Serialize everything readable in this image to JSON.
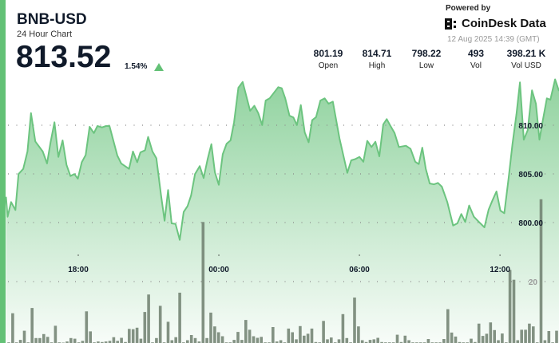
{
  "header": {
    "title": "BNB-USD",
    "subtitle": "24 Hour Chart",
    "price": "813.52",
    "change": "1.54%",
    "change_direction": "up",
    "powered_by": "Powered by",
    "brand": "CoinDesk Data",
    "timestamp": "12 Aug 2025 14:39 (GMT)"
  },
  "stats": [
    {
      "value": "801.19",
      "label": "Open"
    },
    {
      "value": "814.71",
      "label": "High"
    },
    {
      "value": "798.22",
      "label": "Low"
    },
    {
      "value": "493",
      "label": "Vol"
    },
    {
      "value": "398.21 K",
      "label": "Vol USD"
    }
  ],
  "colors": {
    "accent": "#63c176",
    "line": "#6cc47f",
    "volume": "#6f7f6f"
  },
  "chart_data": {
    "type": "area",
    "x_ticks": [
      "18:00",
      "00:00",
      "06:00",
      "12:00"
    ],
    "y_ticks": [
      "800.00",
      "805.00",
      "810.00"
    ],
    "y_range": [
      797.0,
      815.1
    ],
    "volume_tick": "20",
    "grid": "dotted horizontal",
    "price": [
      [
        "14:55",
        802.65
      ],
      [
        "14:59",
        800.6
      ],
      [
        "15:08",
        802.11
      ],
      [
        "15:19",
        801.29
      ],
      [
        "15:27",
        804.98
      ],
      [
        "15:39",
        805.52
      ],
      [
        "15:50",
        807.3
      ],
      [
        "15:59",
        811.25
      ],
      [
        "16:10",
        808.34
      ],
      [
        "16:29",
        807.3
      ],
      [
        "16:40",
        806.07
      ],
      [
        "16:49",
        808.25
      ],
      [
        "16:59",
        810.3
      ],
      [
        "17:09",
        806.75
      ],
      [
        "17:20",
        808.44
      ],
      [
        "17:30",
        805.93
      ],
      [
        "17:40",
        804.78
      ],
      [
        "17:50",
        804.98
      ],
      [
        "17:59",
        804.51
      ],
      [
        "18:09",
        806.2
      ],
      [
        "18:19",
        806.94
      ],
      [
        "18:29",
        809.84
      ],
      [
        "18:40",
        809.2
      ],
      [
        "18:49",
        809.92
      ],
      [
        "19:01",
        809.78
      ],
      [
        "19:11",
        809.92
      ],
      [
        "19:20",
        809.92
      ],
      [
        "19:40",
        806.89
      ],
      [
        "19:50",
        806.07
      ],
      [
        "20:10",
        805.52
      ],
      [
        "20:20",
        807.3
      ],
      [
        "20:31",
        806.2
      ],
      [
        "20:39",
        807.21
      ],
      [
        "20:51",
        807.43
      ],
      [
        "20:59",
        808.8
      ],
      [
        "21:10",
        807.3
      ],
      [
        "21:20",
        806.61
      ],
      [
        "21:32",
        802.79
      ],
      [
        "21:41",
        800.19
      ],
      [
        "21:50",
        803.34
      ],
      [
        "21:59",
        799.92
      ],
      [
        "22:09",
        799.86
      ],
      [
        "22:20",
        798.22
      ],
      [
        "22:30",
        801.09
      ],
      [
        "22:40",
        801.7
      ],
      [
        "22:49",
        802.79
      ],
      [
        "22:59",
        804.98
      ],
      [
        "23:11",
        805.8
      ],
      [
        "23:21",
        804.57
      ],
      [
        "23:31",
        806.48
      ],
      [
        "23:41",
        808.06
      ],
      [
        "23:50",
        805.16
      ],
      [
        "00:00",
        803.88
      ],
      [
        "00:10",
        807.02
      ],
      [
        "00:20",
        808.11
      ],
      [
        "00:30",
        808.44
      ],
      [
        "00:39",
        810.3
      ],
      [
        "00:50",
        813.85
      ],
      [
        "01:01",
        814.45
      ],
      [
        "01:20",
        811.48
      ],
      [
        "01:31",
        812.0
      ],
      [
        "01:41",
        811.25
      ],
      [
        "01:51",
        810.02
      ],
      [
        "02:00",
        812.54
      ],
      [
        "02:10",
        812.76
      ],
      [
        "02:32",
        813.91
      ],
      [
        "02:41",
        813.8
      ],
      [
        "02:50",
        812.76
      ],
      [
        "03:01",
        810.98
      ],
      [
        "03:11",
        810.8
      ],
      [
        "03:20",
        810.02
      ],
      [
        "03:30",
        812.07
      ],
      [
        "03:40",
        809.26
      ],
      [
        "03:50",
        808.25
      ],
      [
        "03:59",
        810.52
      ],
      [
        "04:09",
        810.84
      ],
      [
        "04:20",
        812.54
      ],
      [
        "04:31",
        812.76
      ],
      [
        "04:41",
        812.21
      ],
      [
        "04:52",
        812.43
      ],
      [
        "05:09",
        808.66
      ],
      [
        "05:29",
        805.11
      ],
      [
        "05:39",
        806.39
      ],
      [
        "05:50",
        806.53
      ],
      [
        "06:00",
        806.75
      ],
      [
        "06:10",
        806.25
      ],
      [
        "06:20",
        808.39
      ],
      [
        "06:31",
        807.76
      ],
      [
        "06:41",
        808.3
      ],
      [
        "06:51",
        806.8
      ],
      [
        "07:01",
        810.08
      ],
      [
        "07:10",
        810.63
      ],
      [
        "07:20",
        809.89
      ],
      [
        "07:30",
        809.2
      ],
      [
        "07:41",
        807.76
      ],
      [
        "07:59",
        807.89
      ],
      [
        "08:11",
        807.57
      ],
      [
        "08:23",
        806.25
      ],
      [
        "08:32",
        806.01
      ],
      [
        "08:41",
        807.7
      ],
      [
        "08:50",
        805.52
      ],
      [
        "09:00",
        804.02
      ],
      [
        "09:11",
        803.93
      ],
      [
        "09:21",
        804.07
      ],
      [
        "09:31",
        803.69
      ],
      [
        "09:45",
        802.11
      ],
      [
        "10:00",
        799.7
      ],
      [
        "10:11",
        799.92
      ],
      [
        "10:21",
        800.88
      ],
      [
        "10:31",
        800.06
      ],
      [
        "10:41",
        801.75
      ],
      [
        "10:53",
        800.6
      ],
      [
        "11:05",
        800.11
      ],
      [
        "11:20",
        799.51
      ],
      [
        "11:31",
        801.34
      ],
      [
        "11:41",
        802.3
      ],
      [
        "11:51",
        803.2
      ],
      [
        "12:01",
        801.23
      ],
      [
        "12:11",
        800.96
      ],
      [
        "12:22",
        804.57
      ],
      [
        "12:32",
        808.11
      ],
      [
        "12:42",
        811.12
      ],
      [
        "12:51",
        814.4
      ],
      [
        "13:01",
        808.52
      ],
      [
        "13:11",
        809.48
      ],
      [
        "13:22",
        813.58
      ],
      [
        "13:32",
        812.21
      ],
      [
        "13:41",
        808.52
      ],
      [
        "13:50",
        810.57
      ],
      [
        "14:00",
        812.76
      ],
      [
        "14:09",
        812.62
      ],
      [
        "14:21",
        814.71
      ],
      [
        "14:31",
        813.52
      ]
    ],
    "volume": [
      0.2,
      9.7,
      0.2,
      1.0,
      4.0,
      0.2,
      11.4,
      1.6,
      1.6,
      2.9,
      2.0,
      0.2,
      5.6,
      0.2,
      0,
      0.5,
      1.6,
      1.4,
      0.2,
      0.7,
      10.3,
      3.8,
      0.2,
      0.5,
      0.3,
      0.5,
      0.7,
      1.9,
      0.7,
      1.7,
      0.3,
      4.6,
      4.5,
      5.0,
      1.4,
      10.1,
      15.8,
      0.2,
      1.6,
      12.1,
      0.2,
      6.9,
      0.9,
      1.9,
      16.4,
      0.2,
      0.9,
      2.6,
      1.6,
      0.5,
      39.4,
      1.6,
      9.9,
      5.4,
      3.5,
      2.2,
      0.2,
      0.2,
      1.0,
      3.6,
      1.0,
      7.5,
      4.3,
      2.2,
      1.7,
      2.0,
      0.2,
      0.2,
      5.2,
      0.5,
      0.9,
      0.2,
      4.7,
      3.5,
      1.2,
      5.5,
      2.4,
      3.0,
      4.7,
      0.3,
      0.2,
      7.2,
      1.2,
      1.8,
      0.2,
      1.2,
      9.4,
      1.6,
      0.2,
      14.8,
      5.4,
      0.9,
      0.3,
      1.0,
      1.2,
      1.7,
      0.3,
      0.2,
      0.2,
      0.2,
      2.7,
      0.3,
      2.4,
      0.9,
      0.2,
      0.2,
      0.2,
      0.2,
      1.3,
      0.2,
      0.2,
      0.2,
      1.3,
      11.0,
      3.4,
      2.1,
      0.3,
      0.2,
      0.2,
      1.4,
      0.3,
      6.3,
      2.3,
      3.0,
      6.7,
      4.2,
      0.9,
      3.1,
      0.2,
      23.8,
      20.6,
      0.9,
      4.3,
      4.3,
      6.3,
      5.4,
      0.2,
      46.8,
      0.9,
      3.9,
      0.2,
      4.0
    ]
  }
}
